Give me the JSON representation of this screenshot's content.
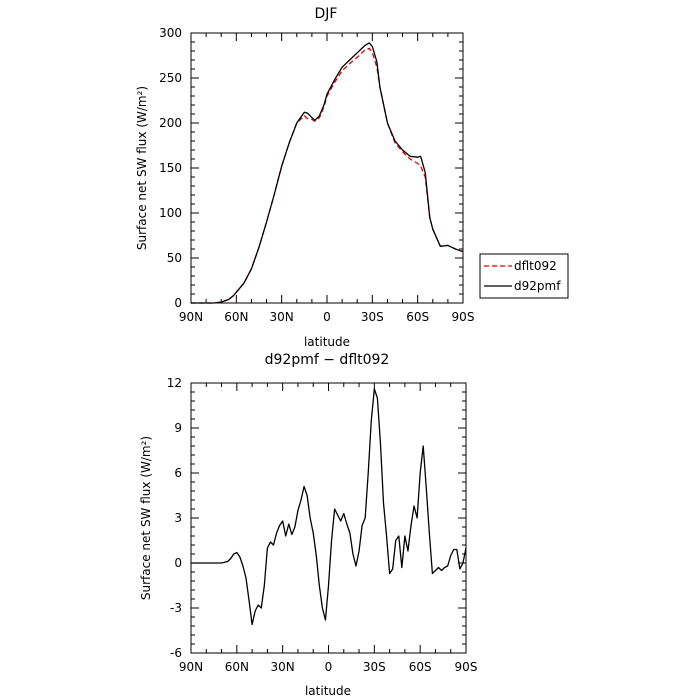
{
  "chart_data": [
    {
      "type": "line",
      "title": "DJF",
      "xlabel": "latitude",
      "ylabel": "Surface net SW flux (W/m²)",
      "xticks": [
        -90,
        -60,
        -30,
        0,
        30,
        60,
        90
      ],
      "xtick_labels": [
        "90N",
        "60N",
        "30N",
        "0",
        "30S",
        "60S",
        "90S"
      ],
      "xlim": [
        -90,
        90
      ],
      "yticks": [
        0,
        50,
        100,
        150,
        200,
        250,
        300
      ],
      "ylim": [
        0,
        300
      ],
      "legend_position": "right",
      "series": [
        {
          "name": "dflt092",
          "color": "#e00000",
          "dash": "dashed",
          "x": [
            -90,
            -80,
            -75,
            -70,
            -65,
            -62,
            -60,
            -55,
            -50,
            -45,
            -40,
            -35,
            -30,
            -25,
            -20,
            -15,
            -13,
            -10,
            -8,
            -5,
            -2,
            0,
            5,
            10,
            15,
            20,
            25,
            28,
            30,
            33,
            35,
            40,
            45,
            50,
            55,
            60,
            62,
            65,
            68,
            70,
            75,
            80,
            85,
            90
          ],
          "y": [
            0,
            0,
            0,
            1,
            4,
            8,
            12,
            22,
            38,
            62,
            90,
            120,
            152,
            178,
            200,
            208,
            205,
            204,
            202,
            206,
            218,
            230,
            245,
            258,
            266,
            273,
            281,
            283,
            278,
            262,
            240,
            200,
            178,
            168,
            160,
            155,
            152,
            140,
            95,
            82,
            63,
            64,
            60,
            57
          ]
        },
        {
          "name": "d92pmf",
          "color": "#000000",
          "dash": "solid",
          "x": [
            -90,
            -80,
            -75,
            -70,
            -65,
            -62,
            -60,
            -55,
            -50,
            -45,
            -40,
            -35,
            -30,
            -25,
            -20,
            -15,
            -13,
            -10,
            -8,
            -5,
            -2,
            0,
            5,
            10,
            15,
            20,
            25,
            28,
            30,
            33,
            35,
            40,
            45,
            50,
            55,
            60,
            62,
            65,
            68,
            70,
            75,
            80,
            85,
            90
          ],
          "y": [
            0,
            0,
            0,
            1,
            4,
            8,
            12,
            22,
            38,
            62,
            90,
            120,
            152,
            178,
            200,
            212,
            211,
            206,
            203,
            208,
            220,
            232,
            248,
            262,
            270,
            278,
            286,
            289,
            285,
            268,
            240,
            200,
            180,
            170,
            163,
            162,
            163,
            145,
            95,
            82,
            63,
            64,
            60,
            57
          ]
        }
      ]
    },
    {
      "type": "line",
      "title": "d92pmf − dflt092",
      "xlabel": "latitude",
      "ylabel": "Surface net SW flux (W/m²)",
      "xticks": [
        -90,
        -60,
        -30,
        0,
        30,
        60,
        90
      ],
      "xtick_labels": [
        "90N",
        "60N",
        "30N",
        "0",
        "30S",
        "60S",
        "90S"
      ],
      "xlim": [
        -90,
        90
      ],
      "yticks": [
        -6,
        -3,
        0,
        3,
        6,
        9,
        12
      ],
      "ylim": [
        -6,
        12
      ],
      "series": [
        {
          "name": "",
          "color": "#000000",
          "dash": "solid",
          "x": [
            -90,
            -75,
            -70,
            -66,
            -64,
            -62,
            -60,
            -58,
            -56,
            -54,
            -52,
            -50,
            -48,
            -46,
            -44,
            -42,
            -40,
            -38,
            -36,
            -34,
            -32,
            -30,
            -28,
            -26,
            -24,
            -22,
            -20,
            -18,
            -16,
            -14,
            -12,
            -10,
            -8,
            -6,
            -4,
            -2,
            0,
            2,
            4,
            6,
            8,
            10,
            12,
            14,
            16,
            18,
            20,
            22,
            24,
            26,
            28,
            30,
            32,
            34,
            36,
            38,
            40,
            42,
            44,
            46,
            48,
            50,
            52,
            54,
            56,
            58,
            60,
            62,
            64,
            66,
            68,
            70,
            72,
            74,
            76,
            78,
            80,
            82,
            84,
            86,
            88,
            90
          ],
          "y": [
            0,
            0,
            0,
            0.1,
            0.3,
            0.6,
            0.7,
            0.4,
            -0.2,
            -1.0,
            -2.5,
            -4.1,
            -3.2,
            -2.8,
            -3.0,
            -1.5,
            1.0,
            1.4,
            1.2,
            2.0,
            2.5,
            2.8,
            1.8,
            2.6,
            1.9,
            2.4,
            3.5,
            4.2,
            5.1,
            4.5,
            3.0,
            2.0,
            0.5,
            -1.5,
            -3.0,
            -3.8,
            -1.5,
            1.5,
            3.6,
            3.2,
            2.8,
            3.3,
            2.6,
            2.0,
            0.6,
            -0.2,
            0.8,
            2.5,
            3.0,
            6.0,
            9.5,
            11.6,
            11.0,
            8.0,
            4.0,
            1.8,
            -0.7,
            -0.4,
            1.5,
            1.8,
            -0.3,
            1.8,
            0.8,
            2.5,
            3.8,
            3.0,
            6.0,
            7.8,
            5.0,
            2.0,
            -0.7,
            -0.5,
            -0.3,
            -0.5,
            -0.3,
            -0.2,
            0.5,
            0.9,
            0.9,
            -0.4,
            0.0,
            1.0
          ]
        }
      ]
    }
  ]
}
